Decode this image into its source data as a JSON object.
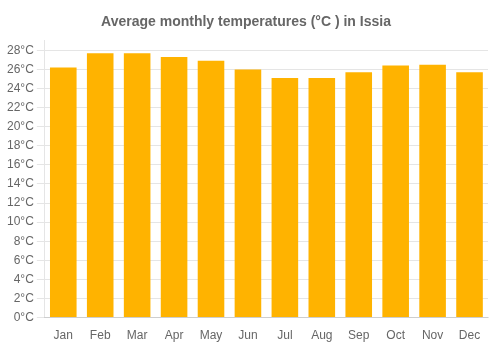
{
  "chart_data": {
    "type": "bar",
    "title": "Average monthly temperatures (°C ) in Issia",
    "categories": [
      "Jan",
      "Feb",
      "Mar",
      "Apr",
      "May",
      "Jun",
      "Jul",
      "Aug",
      "Sep",
      "Oct",
      "Nov",
      "Dec"
    ],
    "values": [
      26.2,
      27.7,
      27.7,
      27.3,
      26.9,
      26.0,
      25.1,
      25.1,
      25.7,
      26.4,
      26.5,
      25.7
    ],
    "color": "#FFB300",
    "ylim": [
      0,
      29
    ],
    "yticks": [
      {
        "value": 0,
        "label": "0°C"
      },
      {
        "value": 2,
        "label": "2°C"
      },
      {
        "value": 4,
        "label": "4°C"
      },
      {
        "value": 6,
        "label": "6°C"
      },
      {
        "value": 8,
        "label": "8°C"
      },
      {
        "value": 10,
        "label": "10°C"
      },
      {
        "value": 12,
        "label": "12°C"
      },
      {
        "value": 14,
        "label": "14°C"
      },
      {
        "value": 16,
        "label": "16°C"
      },
      {
        "value": 18,
        "label": "18°C"
      },
      {
        "value": 20,
        "label": "20°C"
      },
      {
        "value": 22,
        "label": "22°C"
      },
      {
        "value": 24,
        "label": "24°C"
      },
      {
        "value": 26,
        "label": "26°C"
      },
      {
        "value": 28,
        "label": "28°C"
      }
    ],
    "grid": true
  }
}
